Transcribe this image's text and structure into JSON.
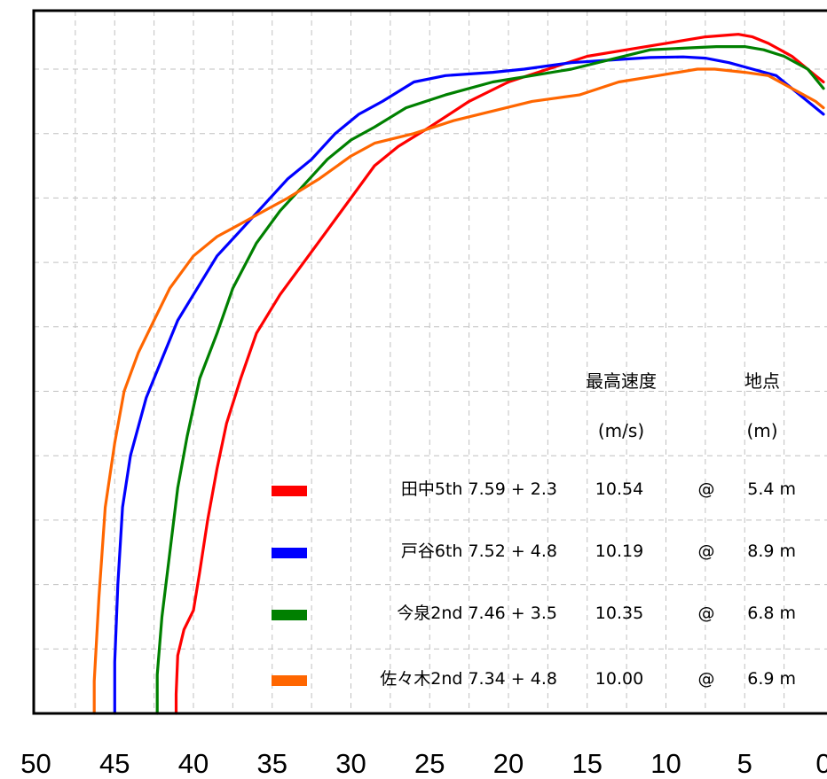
{
  "chart_data": {
    "type": "line",
    "x_axis": {
      "ticks": [
        50,
        45,
        40,
        35,
        30,
        25,
        20,
        15,
        10,
        5,
        0
      ],
      "tick_labels": [
        "50",
        "45",
        "40",
        "35",
        "30",
        "25",
        "20",
        "15",
        "10",
        "5",
        "0"
      ],
      "range": [
        50,
        0
      ],
      "reversed": true
    },
    "y_axis": {
      "range": [
        0,
        11
      ],
      "tick_labels_visible": false
    },
    "grid": {
      "on": true,
      "style": "dashed",
      "x_step": 2.5,
      "y_step": 1
    },
    "legend": {
      "placement": "bottom-right",
      "header": {
        "speed": "最高速度",
        "position": "地点",
        "speed_unit": "(m/s)",
        "position_unit": "(m)"
      }
    },
    "series": [
      {
        "name": "田中5th 7.59 + 2.3",
        "color": "#ff0000",
        "max_speed": "10.54",
        "at": "@",
        "max_position": "5.4 m",
        "points": [
          [
            41.1,
            0
          ],
          [
            41.1,
            0.3
          ],
          [
            41.0,
            0.9
          ],
          [
            40.6,
            1.3
          ],
          [
            40.0,
            1.6
          ],
          [
            39.6,
            2.2
          ],
          [
            39.1,
            3.0
          ],
          [
            38.5,
            3.8
          ],
          [
            37.9,
            4.5
          ],
          [
            37.0,
            5.2
          ],
          [
            36.0,
            5.9
          ],
          [
            34.5,
            6.5
          ],
          [
            33.0,
            7.0
          ],
          [
            31.5,
            7.5
          ],
          [
            30.0,
            8.0
          ],
          [
            28.5,
            8.5
          ],
          [
            27.0,
            8.8
          ],
          [
            25.0,
            9.1
          ],
          [
            22.5,
            9.5
          ],
          [
            20.0,
            9.8
          ],
          [
            17.5,
            10.0
          ],
          [
            15.0,
            10.2
          ],
          [
            12.5,
            10.3
          ],
          [
            10.0,
            10.4
          ],
          [
            7.5,
            10.5
          ],
          [
            6.0,
            10.53
          ],
          [
            5.4,
            10.54
          ],
          [
            4.5,
            10.5
          ],
          [
            3.5,
            10.4
          ],
          [
            2.0,
            10.2
          ],
          [
            0.5,
            9.9
          ],
          [
            0,
            9.8
          ]
        ]
      },
      {
        "name": "戸谷6th 7.52 + 4.8",
        "color": "#0000ff",
        "max_speed": "10.19",
        "at": "@",
        "max_position": "8.9 m",
        "points": [
          [
            45.0,
            0
          ],
          [
            45.0,
            0.8
          ],
          [
            44.8,
            2.0
          ],
          [
            44.5,
            3.2
          ],
          [
            44.0,
            4.0
          ],
          [
            43.0,
            4.9
          ],
          [
            42.0,
            5.5
          ],
          [
            41.0,
            6.1
          ],
          [
            40.0,
            6.5
          ],
          [
            38.5,
            7.1
          ],
          [
            37.0,
            7.5
          ],
          [
            35.5,
            7.9
          ],
          [
            34.0,
            8.3
          ],
          [
            32.5,
            8.6
          ],
          [
            31.0,
            9.0
          ],
          [
            29.5,
            9.3
          ],
          [
            28.0,
            9.5
          ],
          [
            26.0,
            9.8
          ],
          [
            24.0,
            9.9
          ],
          [
            21.0,
            9.95
          ],
          [
            19.0,
            10.0
          ],
          [
            16.0,
            10.1
          ],
          [
            13.0,
            10.15
          ],
          [
            11.0,
            10.18
          ],
          [
            8.9,
            10.19
          ],
          [
            7.5,
            10.17
          ],
          [
            6.0,
            10.1
          ],
          [
            4.5,
            10.0
          ],
          [
            3.0,
            9.9
          ],
          [
            1.5,
            9.6
          ],
          [
            0,
            9.3
          ]
        ]
      },
      {
        "name": "今泉2nd 7.46 + 3.5",
        "color": "#008000",
        "max_speed": "10.35",
        "at": "@",
        "max_position": "6.8 m",
        "points": [
          [
            42.3,
            0
          ],
          [
            42.3,
            0.6
          ],
          [
            42.0,
            1.5
          ],
          [
            41.5,
            2.5
          ],
          [
            41.0,
            3.5
          ],
          [
            40.4,
            4.3
          ],
          [
            39.6,
            5.2
          ],
          [
            38.5,
            5.9
          ],
          [
            37.5,
            6.6
          ],
          [
            36.0,
            7.3
          ],
          [
            34.5,
            7.8
          ],
          [
            33.0,
            8.2
          ],
          [
            31.5,
            8.6
          ],
          [
            30.0,
            8.9
          ],
          [
            28.5,
            9.1
          ],
          [
            26.5,
            9.4
          ],
          [
            24.0,
            9.6
          ],
          [
            21.0,
            9.8
          ],
          [
            18.5,
            9.9
          ],
          [
            16.0,
            10.0
          ],
          [
            13.5,
            10.15
          ],
          [
            11.0,
            10.3
          ],
          [
            8.5,
            10.33
          ],
          [
            6.8,
            10.35
          ],
          [
            5.0,
            10.35
          ],
          [
            3.8,
            10.3
          ],
          [
            2.5,
            10.2
          ],
          [
            1.0,
            10.0
          ],
          [
            0,
            9.7
          ]
        ]
      },
      {
        "name": "佐々木2nd 7.34 + 4.8",
        "color": "#ff6600",
        "max_speed": "10.00",
        "at": "@",
        "max_position": "6.9 m",
        "points": [
          [
            46.3,
            0
          ],
          [
            46.3,
            0.5
          ],
          [
            46.0,
            1.8
          ],
          [
            45.6,
            3.2
          ],
          [
            45.0,
            4.2
          ],
          [
            44.4,
            5.0
          ],
          [
            43.5,
            5.6
          ],
          [
            42.5,
            6.1
          ],
          [
            41.5,
            6.6
          ],
          [
            40.0,
            7.1
          ],
          [
            38.5,
            7.4
          ],
          [
            37.0,
            7.6
          ],
          [
            35.5,
            7.8
          ],
          [
            34.0,
            8.0
          ],
          [
            32.0,
            8.3
          ],
          [
            30.0,
            8.65
          ],
          [
            28.5,
            8.85
          ],
          [
            26.0,
            9.0
          ],
          [
            23.5,
            9.2
          ],
          [
            21.0,
            9.35
          ],
          [
            18.5,
            9.5
          ],
          [
            15.5,
            9.6
          ],
          [
            13.0,
            9.8
          ],
          [
            10.5,
            9.9
          ],
          [
            8.0,
            10.0
          ],
          [
            6.9,
            10.0
          ],
          [
            5.0,
            9.95
          ],
          [
            3.5,
            9.9
          ],
          [
            2.0,
            9.7
          ],
          [
            0.5,
            9.5
          ],
          [
            0,
            9.4
          ]
        ]
      }
    ]
  }
}
